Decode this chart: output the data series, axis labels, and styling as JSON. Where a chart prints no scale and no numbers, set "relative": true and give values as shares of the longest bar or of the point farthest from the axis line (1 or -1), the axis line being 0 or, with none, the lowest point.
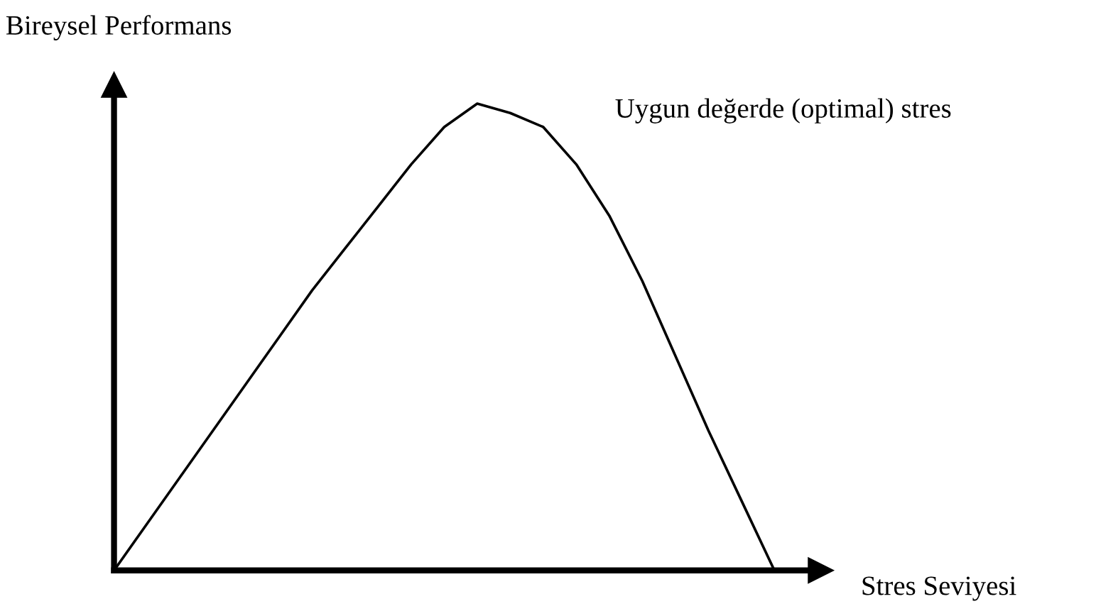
{
  "chart_data": {
    "type": "line",
    "relative": true,
    "ylabel": "Bireysel Performans",
    "xlabel": "Stres Seviyesi",
    "annotations": [
      "Uygun değerde (optimal) stres"
    ],
    "categories": [
      null,
      null,
      null,
      null,
      null,
      null,
      null,
      null,
      null,
      null,
      null,
      null,
      null,
      null,
      null,
      null,
      null,
      null,
      null,
      null,
      null
    ],
    "series": [
      {
        "color": "#000000",
        "values": [
          0,
          0.1,
          0.2,
          0.3,
          0.4,
          0.5,
          0.6,
          0.69,
          0.78,
          0.87,
          0.95,
          1,
          0.98,
          0.95,
          0.87,
          0.76,
          0.62,
          0.46,
          0.3,
          0.15,
          0
        ]
      }
    ],
    "marker": "none",
    "line_style": "solid",
    "grid": false,
    "legend": false
  }
}
